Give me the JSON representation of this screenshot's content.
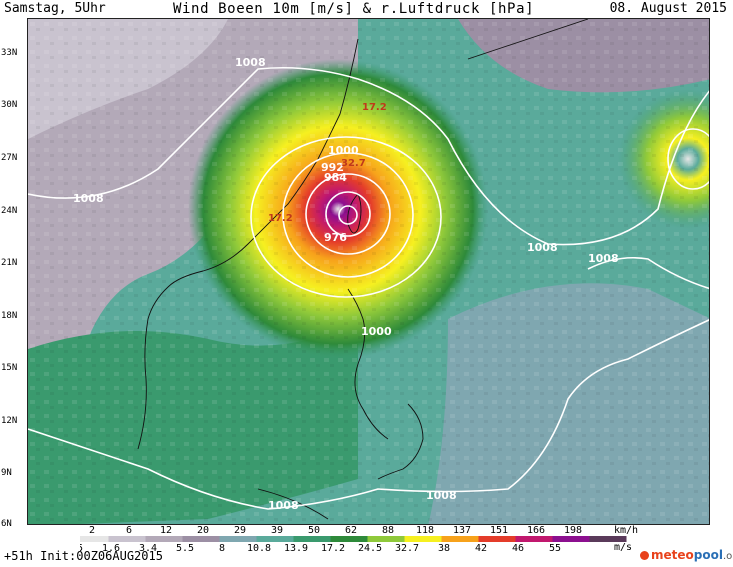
{
  "header": {
    "left": "Samstag, 5Uhr",
    "title": "Wind Boeen 10m [m/s] & r.Luftdruck [hPa]",
    "right": "08. August 2015"
  },
  "map": {
    "lat_labels": [
      "33N",
      "30N",
      "27N",
      "24N",
      "21N",
      "18N",
      "15N",
      "12N",
      "9N",
      "6N"
    ],
    "isobar_labels": [
      "1008",
      "1008",
      "1000",
      "992",
      "984",
      "976",
      "1008",
      "1008",
      "1000",
      "1008",
      "1008"
    ],
    "wind_labels": [
      "17.2",
      "32.7",
      "17.2"
    ]
  },
  "legend": {
    "kmh_values": [
      "2",
      "6",
      "12",
      "20",
      "29",
      "39",
      "50",
      "62",
      "88",
      "118",
      "137",
      "151",
      "166",
      "198"
    ],
    "kmh_unit": "km/h",
    "ms_values": [
      "0.5",
      "1.6",
      "3.4",
      "5.5",
      "8",
      "10.8",
      "13.9",
      "17.2",
      "24.5",
      "32.7",
      "38",
      "42",
      "46",
      "55"
    ],
    "ms_unit": "m/s",
    "colors": [
      "#e6e6e6",
      "#c9c3cf",
      "#b3a9b8",
      "#9c8fa4",
      "#7fa7b0",
      "#5aaa9b",
      "#3a9a6e",
      "#2e8a3a",
      "#8fc93a",
      "#f6f020",
      "#f7a21b",
      "#e43c2a",
      "#c1186e",
      "#8c0f8f",
      "#5a3a5a"
    ]
  },
  "footer": {
    "forecast": "+51h Init:00Z06AUG2015",
    "logo_meteo": "meteo",
    "logo_pool": "pool",
    "logo_org": ".org"
  }
}
